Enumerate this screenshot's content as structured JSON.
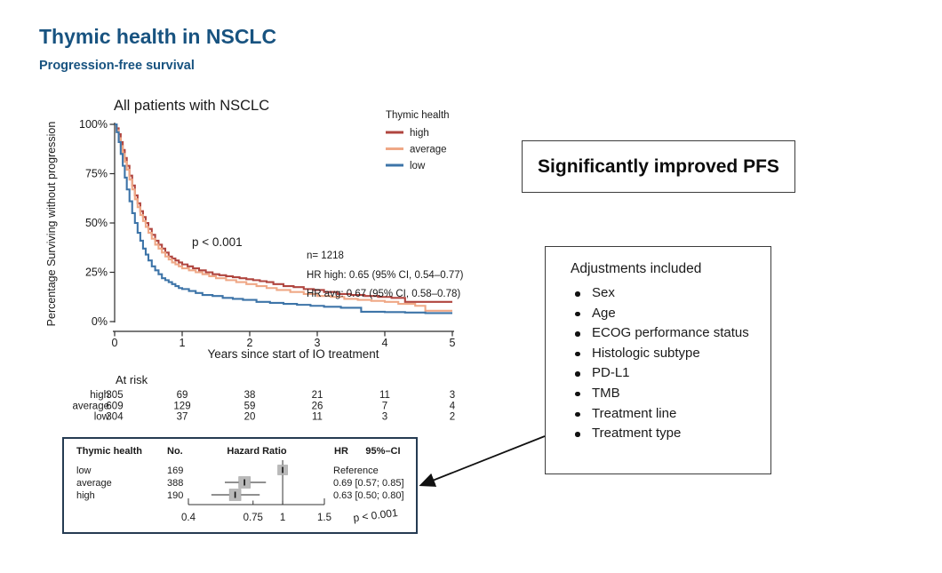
{
  "header": {
    "title": "Thymic health in NSCLC",
    "subtitle": "Progression-free survival"
  },
  "callouts": {
    "pfs": "Significantly improved PFS"
  },
  "adjustments": {
    "title": "Adjustments included",
    "items": [
      "Sex",
      "Age",
      "ECOG performance status",
      "Histologic subtype",
      "PD-L1",
      "TMB",
      "Treatment line",
      "Treatment type"
    ]
  },
  "chart_data": [
    {
      "type": "line",
      "subtype": "kaplan-meier-step",
      "title": "All patients with NSCLC",
      "xlabel": "Years since start of IO treatment",
      "ylabel": "Percentage Surviving without progression",
      "xlim": [
        0,
        5
      ],
      "ylim": [
        0,
        100
      ],
      "x_ticks": [
        {
          "label": "0",
          "value": 0
        },
        {
          "label": "1",
          "value": 1
        },
        {
          "label": "2",
          "value": 2
        },
        {
          "label": "3",
          "value": 3
        },
        {
          "label": "4",
          "value": 4
        },
        {
          "label": "5",
          "value": 5
        }
      ],
      "y_ticks": [
        {
          "label": "100%",
          "value": 100
        },
        {
          "label": "75%",
          "value": 75
        },
        {
          "label": "50%",
          "value": 50
        },
        {
          "label": "25%",
          "value": 25
        },
        {
          "label": "0%",
          "value": 0
        }
      ],
      "legend_title": "Thymic health",
      "legend_position": "upper right",
      "grid": false,
      "annotations": {
        "p_value": "p < 0.001",
        "n": "n= 1218",
        "hr_high": "HR high: 0.65 (95% CI, 0.54–0.77)",
        "hr_avg": "HR avg: 0.67 (95% CI, 0.58–0.78)"
      },
      "series": [
        {
          "name": "high",
          "color": "#b0453f",
          "points": [
            [
              0,
              100
            ],
            [
              0.03,
              98
            ],
            [
              0.06,
              95
            ],
            [
              0.09,
              91
            ],
            [
              0.12,
              87
            ],
            [
              0.15,
              83
            ],
            [
              0.18,
              79
            ],
            [
              0.22,
              74
            ],
            [
              0.26,
              69
            ],
            [
              0.3,
              64
            ],
            [
              0.34,
              60
            ],
            [
              0.38,
              56
            ],
            [
              0.42,
              53
            ],
            [
              0.46,
              50
            ],
            [
              0.5,
              47
            ],
            [
              0.55,
              44
            ],
            [
              0.6,
              41
            ],
            [
              0.65,
              39
            ],
            [
              0.7,
              37
            ],
            [
              0.75,
              35
            ],
            [
              0.8,
              33
            ],
            [
              0.85,
              32
            ],
            [
              0.9,
              31
            ],
            [
              0.95,
              30
            ],
            [
              1.0,
              29
            ],
            [
              1.08,
              28
            ],
            [
              1.16,
              27
            ],
            [
              1.25,
              26
            ],
            [
              1.35,
              25
            ],
            [
              1.45,
              24
            ],
            [
              1.55,
              23.5
            ],
            [
              1.65,
              23
            ],
            [
              1.75,
              22.5
            ],
            [
              1.85,
              22
            ],
            [
              1.95,
              21.5
            ],
            [
              2.05,
              21
            ],
            [
              2.15,
              20.5
            ],
            [
              2.25,
              20
            ],
            [
              2.35,
              19
            ],
            [
              2.5,
              18
            ],
            [
              2.65,
              17.5
            ],
            [
              2.8,
              16.5
            ],
            [
              2.95,
              16
            ],
            [
              3.1,
              15
            ],
            [
              3.3,
              14
            ],
            [
              3.5,
              13.5
            ],
            [
              3.7,
              13
            ],
            [
              3.9,
              12.5
            ],
            [
              4.1,
              12
            ],
            [
              4.3,
              10
            ],
            [
              4.6,
              10
            ],
            [
              5,
              10
            ]
          ]
        },
        {
          "name": "average",
          "color": "#efa886",
          "points": [
            [
              0,
              100
            ],
            [
              0.03,
              97
            ],
            [
              0.06,
              93
            ],
            [
              0.09,
              89
            ],
            [
              0.12,
              85
            ],
            [
              0.15,
              81
            ],
            [
              0.18,
              77
            ],
            [
              0.22,
              72
            ],
            [
              0.26,
              67
            ],
            [
              0.3,
              62
            ],
            [
              0.34,
              58
            ],
            [
              0.38,
              54
            ],
            [
              0.42,
              51
            ],
            [
              0.46,
              48
            ],
            [
              0.5,
              45
            ],
            [
              0.55,
              42
            ],
            [
              0.6,
              39
            ],
            [
              0.65,
              37
            ],
            [
              0.7,
              35
            ],
            [
              0.75,
              33
            ],
            [
              0.8,
              31.5
            ],
            [
              0.85,
              30
            ],
            [
              0.9,
              29
            ],
            [
              0.95,
              28
            ],
            [
              1.0,
              27
            ],
            [
              1.1,
              26
            ],
            [
              1.2,
              25
            ],
            [
              1.3,
              24
            ],
            [
              1.4,
              23
            ],
            [
              1.5,
              22
            ],
            [
              1.65,
              21
            ],
            [
              1.8,
              20
            ],
            [
              1.95,
              19
            ],
            [
              2.1,
              18
            ],
            [
              2.25,
              17
            ],
            [
              2.4,
              16
            ],
            [
              2.6,
              15
            ],
            [
              2.8,
              14
            ],
            [
              3.0,
              13
            ],
            [
              3.2,
              12.5
            ],
            [
              3.4,
              11.5
            ],
            [
              3.6,
              11
            ],
            [
              3.8,
              10.5
            ],
            [
              4.0,
              10
            ],
            [
              4.2,
              9
            ],
            [
              4.45,
              8
            ],
            [
              4.6,
              5.5
            ],
            [
              5,
              5.5
            ]
          ]
        },
        {
          "name": "low",
          "color": "#3d74a8",
          "points": [
            [
              0,
              100
            ],
            [
              0.03,
              96
            ],
            [
              0.06,
              91
            ],
            [
              0.09,
              85
            ],
            [
              0.12,
              79
            ],
            [
              0.15,
              73
            ],
            [
              0.18,
              67
            ],
            [
              0.22,
              61
            ],
            [
              0.26,
              55
            ],
            [
              0.3,
              50
            ],
            [
              0.34,
              45
            ],
            [
              0.38,
              41
            ],
            [
              0.42,
              37
            ],
            [
              0.46,
              34
            ],
            [
              0.5,
              31
            ],
            [
              0.55,
              28
            ],
            [
              0.6,
              26
            ],
            [
              0.65,
              24
            ],
            [
              0.7,
              22
            ],
            [
              0.75,
              21
            ],
            [
              0.8,
              20
            ],
            [
              0.85,
              19
            ],
            [
              0.9,
              18
            ],
            [
              0.95,
              17
            ],
            [
              1.0,
              16.5
            ],
            [
              1.1,
              15.5
            ],
            [
              1.2,
              14.5
            ],
            [
              1.3,
              13.5
            ],
            [
              1.45,
              13
            ],
            [
              1.6,
              12
            ],
            [
              1.75,
              11.5
            ],
            [
              1.9,
              11
            ],
            [
              2.1,
              10
            ],
            [
              2.3,
              9.5
            ],
            [
              2.5,
              9
            ],
            [
              2.7,
              8.5
            ],
            [
              2.9,
              8
            ],
            [
              3.1,
              7.5
            ],
            [
              3.35,
              7
            ],
            [
              3.65,
              5
            ],
            [
              4.0,
              4.8
            ],
            [
              4.3,
              4.6
            ],
            [
              4.6,
              4.3
            ],
            [
              5,
              4.3
            ]
          ]
        }
      ],
      "at_risk": {
        "label": "At risk",
        "rows": [
          {
            "name": "high",
            "color": "#b0453f",
            "values": [
              305,
              69,
              38,
              21,
              11,
              3
            ]
          },
          {
            "name": "average",
            "color": "#efa886",
            "values": [
              609,
              129,
              59,
              26,
              7,
              4
            ]
          },
          {
            "name": "low",
            "color": "#3d74a8",
            "values": [
              304,
              37,
              20,
              11,
              3,
              2
            ]
          }
        ]
      }
    },
    {
      "type": "table",
      "subtype": "forest-plot",
      "columns": [
        "Thymic health",
        "No.",
        "Hazard Ratio",
        "HR",
        "95%–CI"
      ],
      "rows": [
        {
          "group": "low",
          "n": 169,
          "hr": 1.0,
          "ci_low": null,
          "ci_high": null,
          "hr_text": "Reference",
          "reference": true
        },
        {
          "group": "average",
          "n": 388,
          "hr": 0.69,
          "ci_low": 0.57,
          "ci_high": 0.85,
          "hr_text": "0.69 [0.57; 0.85]",
          "reference": false
        },
        {
          "group": "high",
          "n": 190,
          "hr": 0.63,
          "ci_low": 0.5,
          "ci_high": 0.8,
          "hr_text": "0.63 [0.50; 0.80]",
          "reference": false
        }
      ],
      "axis_ticks": [
        {
          "label": "0.4",
          "value": 0.4
        },
        {
          "label": "0.75",
          "value": 0.75
        },
        {
          "label": "1",
          "value": 1
        },
        {
          "label": "1.5",
          "value": 1.5
        }
      ],
      "scale": "log",
      "p_value": "p < 0.001"
    }
  ]
}
